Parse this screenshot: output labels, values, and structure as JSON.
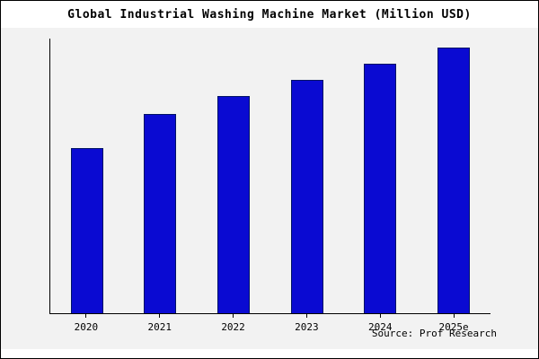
{
  "title": "Global Industrial Washing Machine Market (Million USD)",
  "source": "Source: Prof Research",
  "colors": {
    "bar_fill": "#0a0ad2",
    "bar_border": "#001266",
    "chart_bg": "#f2f2f2",
    "frame_border": "#000000"
  },
  "chart_data": {
    "type": "bar",
    "title": "Global Industrial Washing Machine Market (Million USD)",
    "categories": [
      "2020",
      "2021",
      "2022",
      "2023",
      "2024",
      "2025e"
    ],
    "values": [
      620,
      747,
      815,
      875,
      935,
      995
    ],
    "xlabel": "",
    "ylabel": "",
    "ylim": [
      0,
      1030
    ],
    "grid": false,
    "legend": false,
    "note": "no y-axis tick labels shown; values estimated from bar heights"
  }
}
